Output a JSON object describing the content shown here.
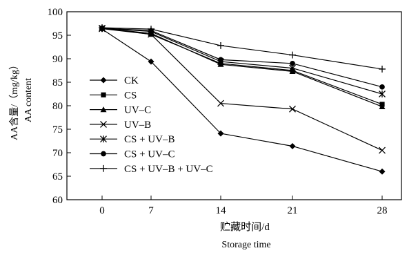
{
  "chart_data": {
    "type": "line",
    "title": "",
    "xlabel": "贮藏时间/d",
    "xlabel_en": "Storage time",
    "ylabel": "AA含量/（mg/kg）",
    "ylabel_en": "AA content",
    "x": [
      0,
      7,
      14,
      21,
      28
    ],
    "xticks": [
      "0",
      "7",
      "14",
      "21",
      "28"
    ],
    "ylim": [
      60,
      100
    ],
    "yticks": [
      "60",
      "65",
      "70",
      "75",
      "80",
      "85",
      "90",
      "95",
      "100"
    ],
    "grid": false,
    "legend_position": "left",
    "series": [
      {
        "name": "CK",
        "marker": "diamond",
        "values": [
          96.3,
          89.4,
          74.1,
          71.4,
          66.0
        ]
      },
      {
        "name": "CS",
        "marker": "square",
        "values": [
          96.5,
          95.2,
          89.0,
          87.5,
          80.3
        ]
      },
      {
        "name": "UV–C",
        "marker": "triangle",
        "values": [
          96.5,
          95.4,
          88.8,
          87.3,
          79.8
        ]
      },
      {
        "name": "UV–B",
        "marker": "x",
        "values": [
          96.4,
          95.2,
          80.5,
          79.3,
          70.5
        ]
      },
      {
        "name": "CS + UV–B",
        "marker": "asterisk",
        "values": [
          96.5,
          95.8,
          89.4,
          88.0,
          82.5
        ]
      },
      {
        "name": "CS + UV–C",
        "marker": "circle",
        "values": [
          96.5,
          96.0,
          89.8,
          89.0,
          84.0
        ]
      },
      {
        "name": "CS + UV–B + UV–C",
        "marker": "plus",
        "values": [
          96.6,
          96.3,
          92.8,
          90.8,
          87.8
        ]
      }
    ]
  }
}
